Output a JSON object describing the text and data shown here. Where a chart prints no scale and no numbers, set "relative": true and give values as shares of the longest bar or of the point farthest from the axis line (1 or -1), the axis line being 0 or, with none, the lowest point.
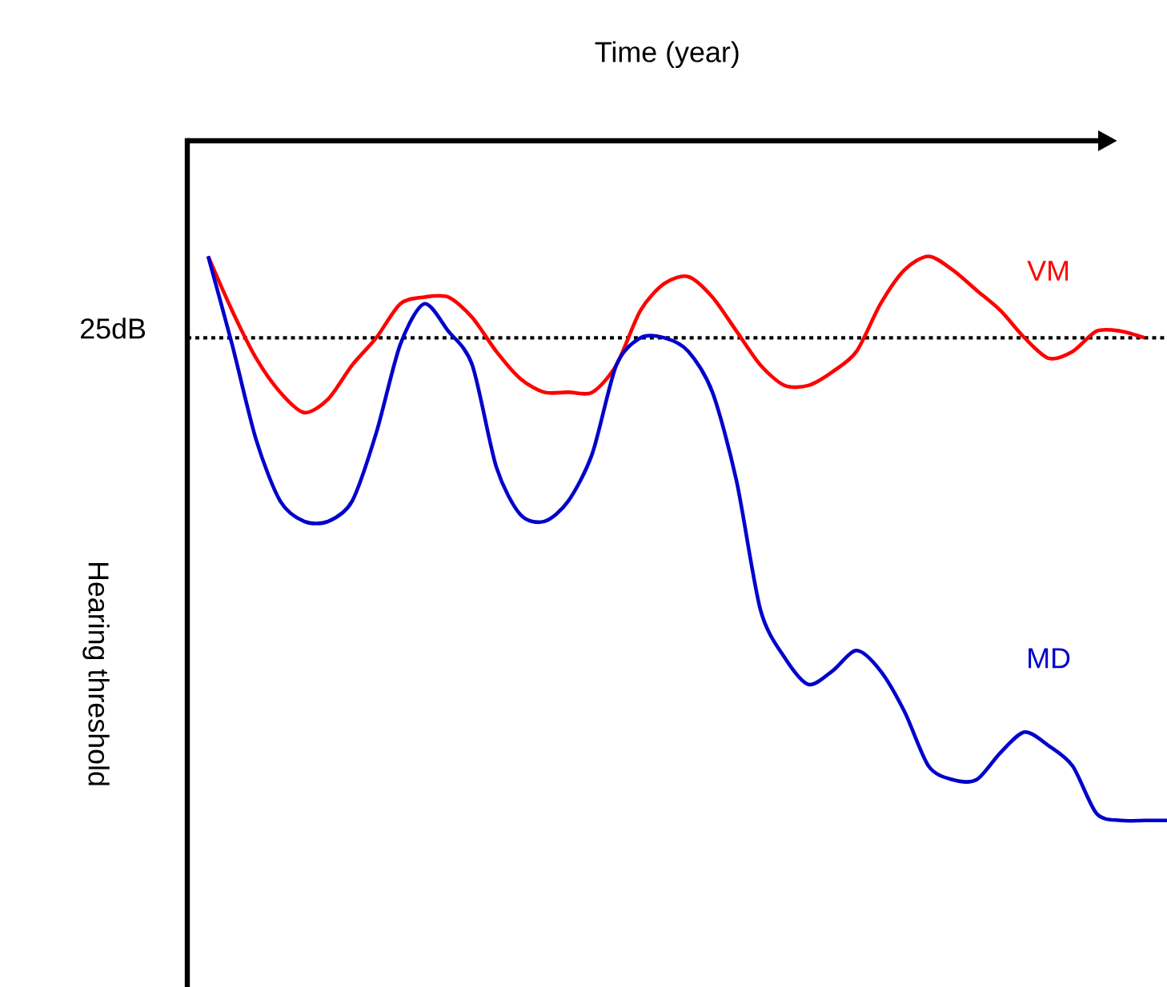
{
  "chart_data": {
    "type": "line",
    "relative": true,
    "xlabel": "Time (year)",
    "ylabel": "Hearing threshold",
    "categories": [
      null,
      null,
      null,
      null,
      null,
      null,
      null,
      null,
      null,
      null,
      null,
      null,
      null,
      null,
      null,
      null,
      null,
      null,
      null,
      null,
      null,
      null,
      null,
      null,
      null,
      null,
      null,
      null,
      null,
      null,
      null,
      null,
      null,
      null,
      null,
      null,
      null,
      null,
      null,
      null,
      null
    ],
    "series": [
      {
        "name": "VM",
        "color": "#ff0000",
        "values": [
          -0.17,
          -0.25,
          -0.32,
          -0.37,
          -0.4,
          -0.38,
          -0.33,
          -0.29,
          -0.24,
          -0.23,
          -0.23,
          -0.26,
          -0.31,
          -0.35,
          -0.37,
          -0.37,
          -0.37,
          -0.33,
          -0.25,
          -0.21,
          -0.2,
          -0.23,
          -0.28,
          -0.33,
          -0.36,
          -0.36,
          -0.34,
          -0.31,
          -0.24,
          -0.19,
          -0.17,
          -0.19,
          -0.22,
          -0.25,
          -0.29,
          -0.32,
          -0.31,
          -0.28,
          -0.28,
          -0.29,
          null
        ]
      },
      {
        "name": "MD",
        "color": "#0000cc",
        "values": [
          -0.17,
          -0.3,
          -0.44,
          -0.53,
          -0.56,
          -0.56,
          -0.53,
          -0.43,
          -0.3,
          -0.24,
          -0.28,
          -0.33,
          -0.48,
          -0.55,
          -0.56,
          -0.53,
          -0.46,
          -0.33,
          -0.29,
          -0.29,
          -0.31,
          -0.37,
          -0.5,
          -0.69,
          -0.76,
          -0.8,
          -0.78,
          -0.75,
          -0.78,
          -0.84,
          -0.92,
          -0.94,
          -0.94,
          -0.9,
          -0.87,
          -0.89,
          -0.92,
          -0.99,
          -1,
          -1,
          -1
        ]
      }
    ],
    "ref_lines": [
      {
        "axis": "y",
        "value": -0.29,
        "label": "25dB",
        "color": "#000000",
        "line_style": "dotted"
      }
    ]
  }
}
